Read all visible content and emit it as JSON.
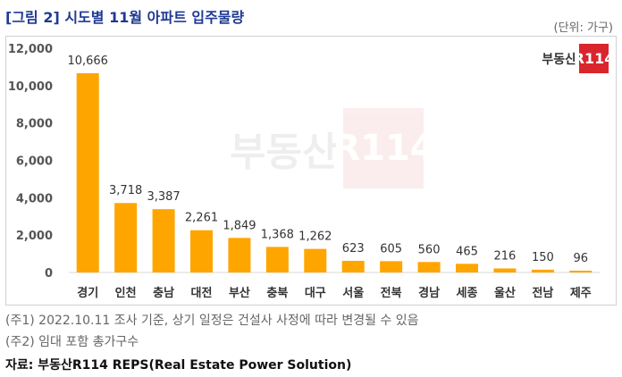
{
  "header": {
    "title": "[그림 2] 시도별 11월 아파트 입주물량",
    "unit": "(단위: 가구)"
  },
  "logo": {
    "text": "부동산",
    "box": "R114"
  },
  "chart_data": {
    "type": "bar",
    "categories": [
      "경기",
      "인천",
      "충남",
      "대전",
      "부산",
      "충북",
      "대구",
      "서울",
      "전북",
      "경남",
      "세종",
      "울산",
      "전남",
      "제주"
    ],
    "values": [
      10666,
      3718,
      3387,
      2261,
      1849,
      1368,
      1262,
      623,
      605,
      560,
      465,
      216,
      150,
      96
    ],
    "value_labels": [
      "10,666",
      "3,718",
      "3,387",
      "2,261",
      "1,849",
      "1,368",
      "1,262",
      "623",
      "605",
      "560",
      "465",
      "216",
      "150",
      "96"
    ],
    "yticks": [
      0,
      2000,
      4000,
      6000,
      8000,
      10000,
      12000
    ],
    "ytick_labels": [
      "0",
      "2,000",
      "4,000",
      "6,000",
      "8,000",
      "10,000",
      "12,000"
    ],
    "ylim": [
      0,
      12000
    ],
    "grid": false,
    "bar_color": "#FFA500"
  },
  "notes": [
    "(주1) 2022.10.11 조사 기준, 상기 일정은 건설사 사정에 따라 변경될 수 있음",
    "(주2) 임대 포함 총가구수"
  ],
  "source": "자료: 부동산R114 REPS(Real Estate Power Solution)"
}
